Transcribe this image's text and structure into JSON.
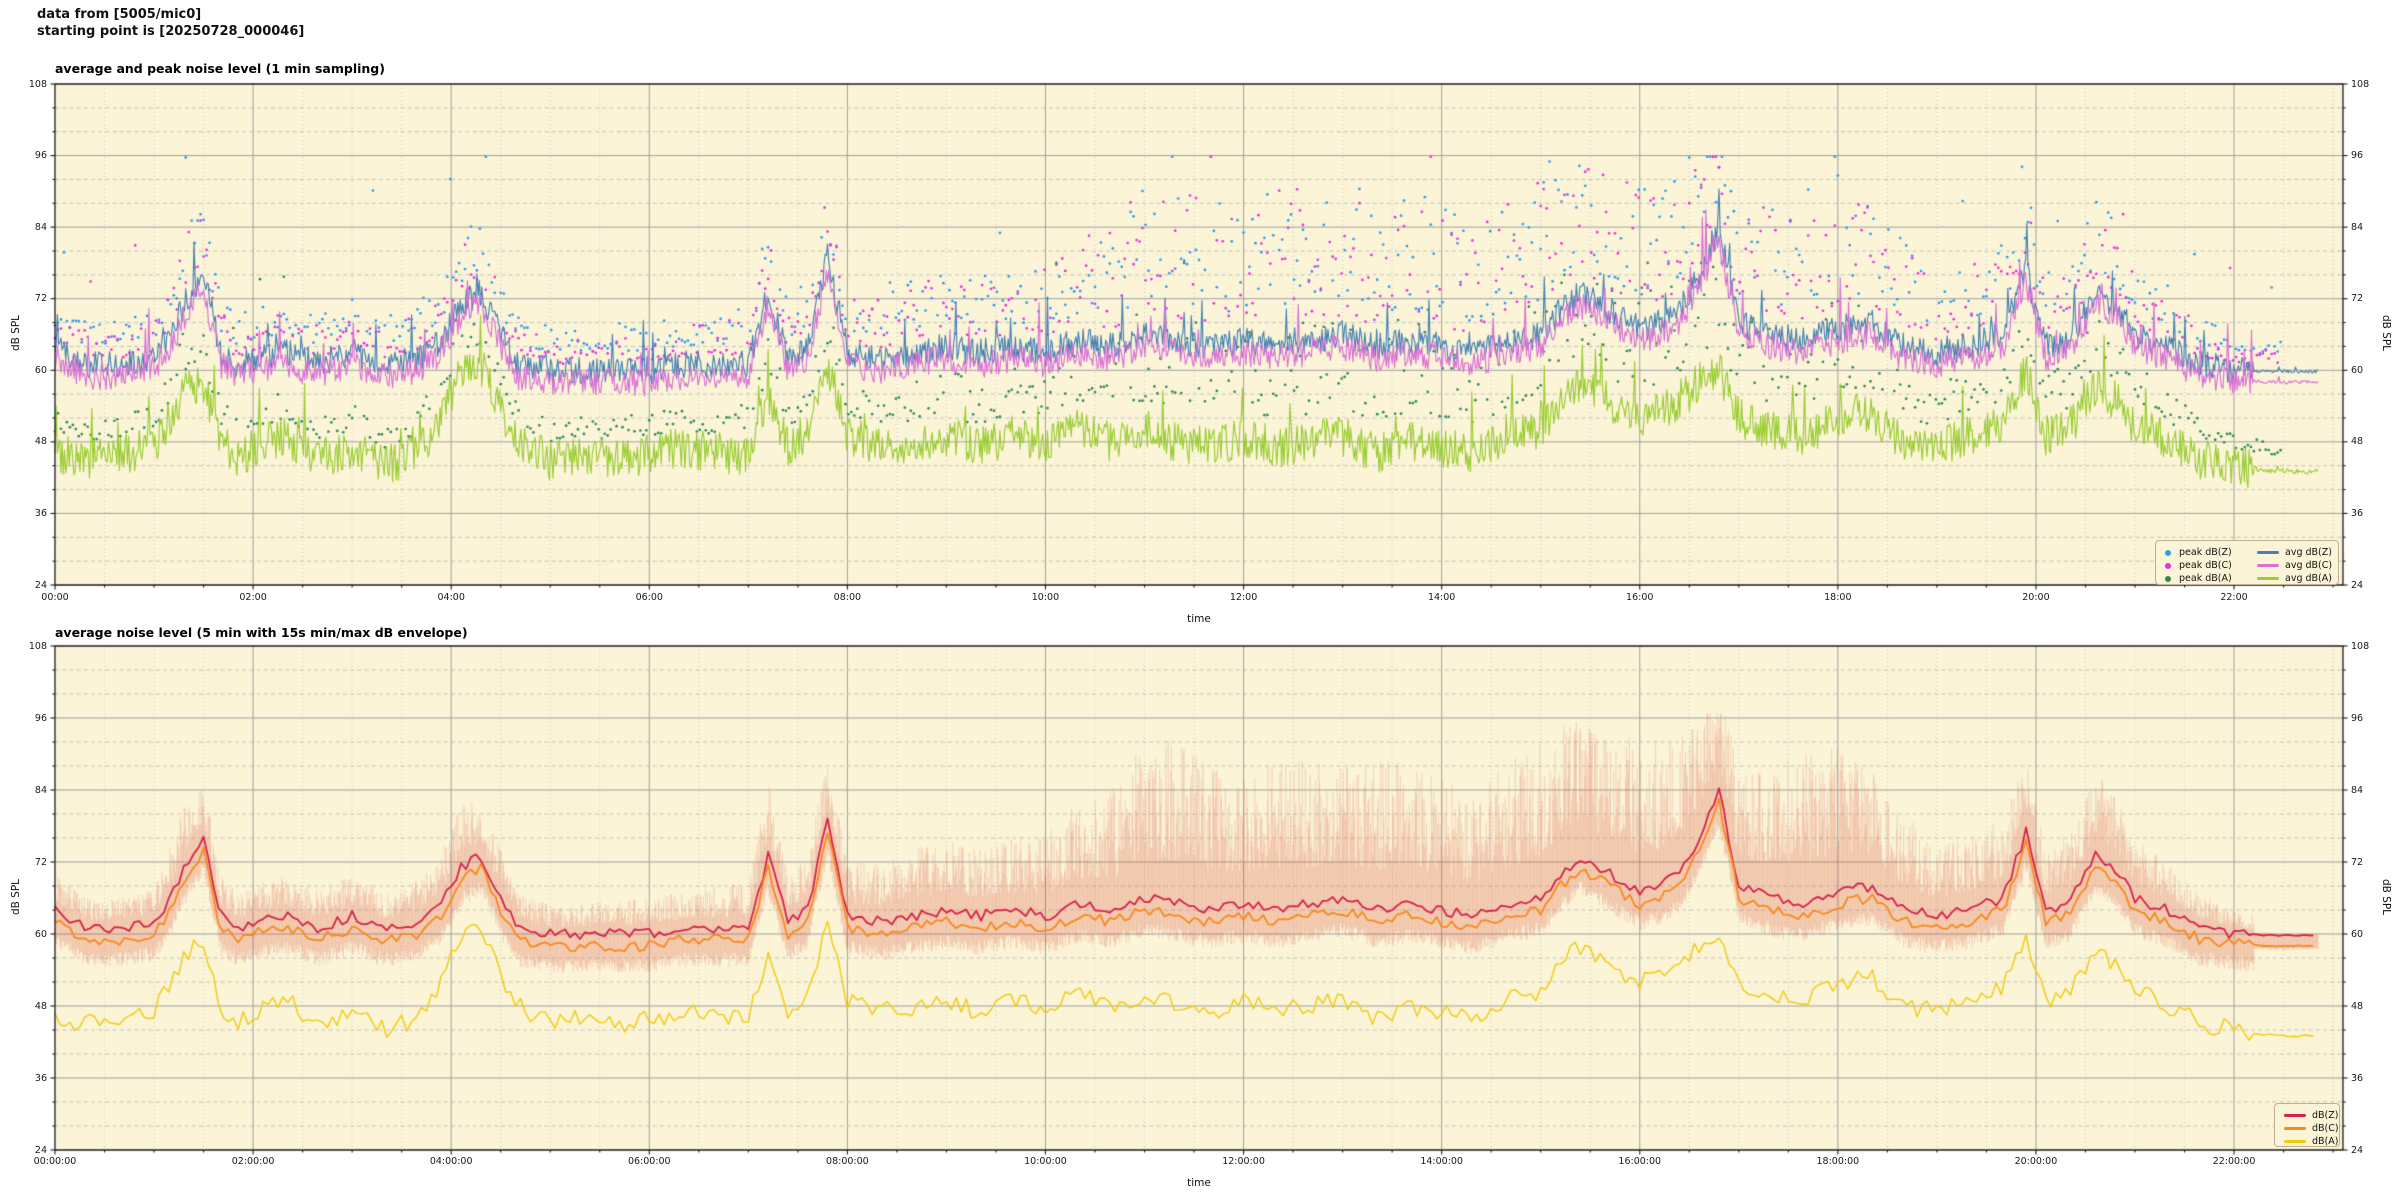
{
  "header": {
    "line1": "data from [5005/mic0]",
    "line2": "starting point is [20250728_000046]"
  },
  "colors": {
    "figure_bg": "#FFFFFF",
    "plot_bg": "#FBF4D7",
    "grid_major": "#A0A0A0",
    "grid_minor_h": "#BDBDBD",
    "grid_minor_v": "#C2C2C2",
    "frame": "#1A1A1A",
    "peak_z": "#2E9BF0",
    "peak_c": "#F02BE0",
    "peak_a": "#2E8B57",
    "avg_z": "#4682B4",
    "avg_c": "#DA70D6",
    "avg_a": "#9ACD32",
    "db_z2": "#D7224A",
    "db_c2": "#F78A1E",
    "db_a2": "#F0CB0C",
    "envelope": "rgba(221,84,66,0.20)",
    "legend_bg": "#FBF4D7",
    "legend_border": "#BFB190"
  },
  "shared_anchors": {
    "description": "downsampled anchor values (dB SPL vs hours) estimated from the plotted curves; both charts show the same underlying signal",
    "t_hours": [
      0,
      0.33,
      0.67,
      1.0,
      1.17,
      1.33,
      1.5,
      1.67,
      1.83,
      2.0,
      2.33,
      2.67,
      3.0,
      3.33,
      3.67,
      3.9,
      4.1,
      4.3,
      4.5,
      4.67,
      5.0,
      5.33,
      5.67,
      6.0,
      6.33,
      6.67,
      7.0,
      7.2,
      7.4,
      7.6,
      7.8,
      8.0,
      8.33,
      8.67,
      9.0,
      9.33,
      9.67,
      10.0,
      10.33,
      10.67,
      11.0,
      11.33,
      11.67,
      12.0,
      12.33,
      12.67,
      13.0,
      13.33,
      13.67,
      14.0,
      14.33,
      14.67,
      15.0,
      15.2,
      15.4,
      15.6,
      15.8,
      16.0,
      16.2,
      16.4,
      16.6,
      16.8,
      17.0,
      17.33,
      17.67,
      18.0,
      18.33,
      18.67,
      19.0,
      19.33,
      19.67,
      19.9,
      20.1,
      20.33,
      20.6,
      20.8,
      21.0,
      21.33,
      21.67,
      22.0,
      22.33,
      22.67,
      22.85
    ],
    "z_db": [
      64,
      61,
      61,
      62,
      66,
      72,
      76,
      63,
      61,
      62,
      63,
      61,
      63,
      61,
      62,
      65,
      71,
      73,
      66,
      61,
      60,
      60,
      60,
      60,
      61,
      61,
      61,
      73,
      62,
      64,
      79,
      63,
      62,
      63,
      64,
      63,
      64,
      63,
      65,
      64,
      66,
      65,
      64,
      65,
      64,
      65,
      66,
      64,
      65,
      64,
      63,
      65,
      66,
      70,
      73,
      71,
      69,
      67,
      68,
      70,
      76,
      84,
      68,
      66,
      65,
      67,
      68,
      64,
      63,
      64,
      66,
      77,
      64,
      65,
      73,
      71,
      66,
      64,
      61,
      60,
      59.8,
      59.8,
      59.8
    ],
    "c_db": [
      62,
      59,
      59,
      60,
      64,
      70,
      74,
      61,
      59,
      60,
      61,
      59,
      61,
      59,
      60,
      63,
      69,
      71,
      64,
      59,
      58,
      58,
      58,
      58,
      59,
      59,
      59,
      71,
      60,
      62,
      77,
      61,
      60,
      61,
      62,
      61,
      62,
      61,
      63,
      62,
      64,
      63,
      62,
      63,
      62,
      63,
      64,
      62,
      63,
      62,
      61,
      63,
      64,
      68,
      71,
      69,
      67,
      65,
      66,
      68,
      74,
      82,
      66,
      64,
      63,
      65,
      66,
      62,
      61,
      62,
      64,
      75,
      62,
      63,
      71,
      69,
      64,
      62,
      59,
      58.4,
      58,
      58,
      58
    ],
    "a_db": [
      46,
      45,
      46,
      47,
      52,
      57,
      58,
      48,
      45,
      47,
      49,
      45,
      47,
      44,
      46,
      52,
      60,
      61,
      53,
      48,
      45,
      46,
      45,
      46,
      47,
      46,
      46,
      56,
      47,
      50,
      61,
      49,
      47,
      48,
      49,
      47,
      49,
      48,
      50,
      48,
      50,
      48,
      47,
      49,
      47,
      48,
      49,
      46,
      48,
      47,
      46,
      49,
      50,
      55,
      58,
      56,
      53,
      52,
      53,
      55,
      58,
      60,
      52,
      50,
      49,
      52,
      53,
      48,
      47,
      49,
      51,
      60,
      49,
      50,
      57,
      55,
      51,
      48,
      45,
      44,
      43.2,
      43,
      43
    ],
    "peak_excess_db": [
      6,
      5,
      5,
      6,
      9,
      11,
      10,
      7,
      6,
      6,
      7,
      6,
      7,
      6,
      7,
      9,
      11,
      9,
      8,
      6,
      5,
      5,
      6,
      6,
      6,
      7,
      8,
      13,
      8,
      9,
      11,
      9,
      10,
      11,
      12,
      11,
      12,
      14,
      17,
      20,
      26,
      28,
      24,
      22,
      25,
      24,
      22,
      26,
      24,
      22,
      20,
      24,
      26,
      25,
      24,
      22,
      24,
      26,
      25,
      24,
      22,
      20,
      18,
      22,
      26,
      24,
      20,
      16,
      12,
      12,
      14,
      12,
      10,
      12,
      14,
      12,
      10,
      8,
      6,
      4,
      3,
      2,
      2
    ]
  },
  "chart_data": [
    {
      "type": "line+scatter",
      "title": "average and peak noise level (1 min sampling)",
      "xlabel": "time",
      "ylabel": "dB SPL",
      "ylim": [
        24,
        108
      ],
      "yticks": [
        108,
        96,
        84,
        72,
        60,
        48,
        36,
        24
      ],
      "ytick_minor_step": 4,
      "xlim_hours": [
        0,
        23.1
      ],
      "xtick_step_hours": 2,
      "xtick_labels": [
        "00:00",
        "02:00",
        "04:00",
        "06:00",
        "08:00",
        "10:00",
        "12:00",
        "14:00",
        "16:00",
        "18:00",
        "20:00",
        "22:00"
      ],
      "xminor_step_hours": 0.5,
      "grid": {
        "major": true,
        "minor": true
      },
      "legend": {
        "position": "lower right",
        "columns": 2,
        "items": [
          {
            "marker": "dot",
            "color_key": "peak_z",
            "label": "peak dB(Z)"
          },
          {
            "marker": "dot",
            "color_key": "peak_c",
            "label": "peak dB(C)"
          },
          {
            "marker": "dot",
            "color_key": "peak_a",
            "label": "peak dB(A)"
          },
          {
            "marker": "line",
            "color_key": "avg_z",
            "label": "avg dB(Z)"
          },
          {
            "marker": "line",
            "color_key": "avg_c",
            "label": "avg dB(C)"
          },
          {
            "marker": "line",
            "color_key": "avg_a",
            "label": "avg dB(A)"
          }
        ]
      },
      "series": [
        {
          "name": "avg dB(Z)",
          "color_key": "avg_z",
          "anchors_key": "z_db"
        },
        {
          "name": "avg dB(C)",
          "color_key": "avg_c",
          "anchors_key": "c_db"
        },
        {
          "name": "avg dB(A)",
          "color_key": "avg_a",
          "anchors_key": "a_db"
        }
      ],
      "scatter_series": [
        {
          "name": "peak dB(Z)",
          "color_key": "peak_z",
          "above_series": "z_db"
        },
        {
          "name": "peak dB(C)",
          "color_key": "peak_c",
          "above_series": "c_db"
        },
        {
          "name": "peak dB(A)",
          "color_key": "peak_a",
          "above_series": "a_db"
        }
      ],
      "texture": {
        "seed": 11,
        "line_jitter_db": [
          2.3,
          2.3,
          3.4
        ],
        "spike_prob": 0.025,
        "sample_step_hours": 0.012,
        "scatter_step_hours": 0.03,
        "flat_after_hours": 22.2,
        "scatter_cap_db": 95.8
      }
    },
    {
      "type": "line+envelope",
      "title": "average noise level (5 min with 15s min/max dB envelope)",
      "xlabel": "time",
      "ylabel": "dB SPL",
      "ylim": [
        24,
        108
      ],
      "yticks": [
        108,
        96,
        84,
        72,
        60,
        48,
        36,
        24
      ],
      "ytick_minor_step": 4,
      "xlim_hours": [
        0,
        23.1
      ],
      "xtick_step_hours": 2,
      "xtick_labels": [
        "00:00:00",
        "02:00:00",
        "04:00:00",
        "06:00:00",
        "08:00:00",
        "10:00:00",
        "12:00:00",
        "14:00:00",
        "16:00:00",
        "18:00:00",
        "20:00:00",
        "22:00:00"
      ],
      "xminor_step_hours": 0.5,
      "grid": {
        "major": true,
        "minor": true
      },
      "legend": {
        "position": "lower right",
        "columns": 1,
        "items": [
          {
            "marker": "line",
            "color_key": "db_z2",
            "label": "dB(Z)"
          },
          {
            "marker": "line",
            "color_key": "db_c2",
            "label": "dB(C)"
          },
          {
            "marker": "line",
            "color_key": "db_a2",
            "label": "dB(A)"
          }
        ]
      },
      "series": [
        {
          "name": "dB(Z)",
          "color_key": "db_z2",
          "anchors_key": "z_db"
        },
        {
          "name": "dB(C)",
          "color_key": "db_c2",
          "anchors_key": "c_db"
        },
        {
          "name": "dB(A)",
          "color_key": "db_a2",
          "anchors_key": "a_db"
        }
      ],
      "envelope": {
        "max_excess_key": "peak_excess_db",
        "min_below_c_db": 2,
        "step_hours": 0.008,
        "cap_db": 96.8
      },
      "texture": {
        "seed": 47,
        "line_jitter_db": [
          0.9,
          0.9,
          1.6
        ],
        "spike_prob": 0.0,
        "sample_step_hours": 0.05,
        "scatter_step_hours": 0,
        "flat_after_hours": 22.2,
        "scatter_cap_db": 96
      }
    }
  ]
}
